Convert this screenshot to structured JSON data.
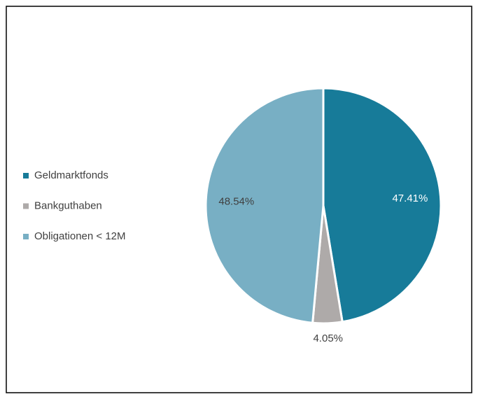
{
  "chart_data": {
    "type": "pie",
    "categories": [
      "Geldmarktfonds",
      "Bankguthaben",
      "Obligationen < 12M"
    ],
    "values": [
      47.41,
      4.05,
      48.54
    ],
    "value_labels": [
      "47.41%",
      "4.05%",
      "48.54%"
    ],
    "colors": [
      "#177b99",
      "#aeaaa9",
      "#78afc4"
    ],
    "label_colors": [
      "#ffffff",
      "#404040",
      "#404040"
    ],
    "legend": "left"
  }
}
